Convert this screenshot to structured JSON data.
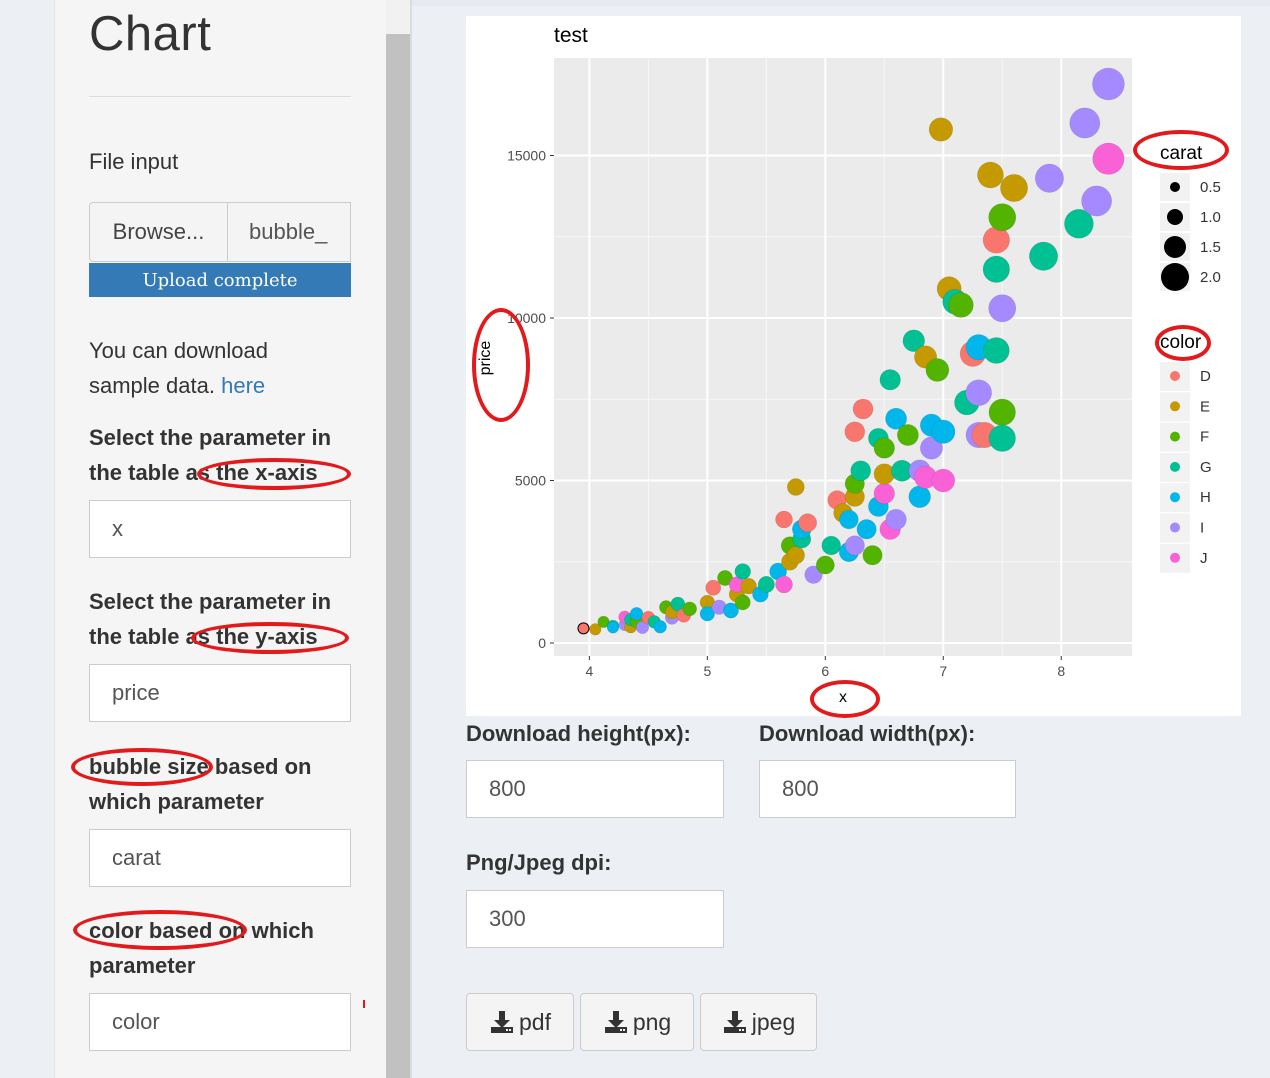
{
  "sidebar": {
    "title": "Chart",
    "file_input": {
      "label": "File input",
      "browse_label": "Browse...",
      "file_name": "bubble_",
      "progress_label": "Upload complete",
      "progress": 1.0
    },
    "download_note": {
      "text": "You can download sample data.",
      "link": "here"
    },
    "x_axis": {
      "label": "Select the parameter in the table as the x-axis",
      "value": "x"
    },
    "y_axis": {
      "label": "Select the parameter in the table as the y-axis",
      "value": "price"
    },
    "size_param": {
      "label": "bubble size based on which parameter",
      "value": "carat"
    },
    "color_param": {
      "label": "color based on which parameter",
      "value": "color"
    }
  },
  "download": {
    "height_label": "Download height(px):",
    "height_value": "800",
    "width_label": "Download width(px):",
    "width_value": "800",
    "dpi_label": "Png/Jpeg dpi:",
    "dpi_value": "300",
    "buttons": [
      {
        "label": "pdf",
        "icon": "download-icon"
      },
      {
        "label": "png",
        "icon": "download-icon"
      },
      {
        "label": "jpeg",
        "icon": "download-icon"
      }
    ]
  },
  "colors": {
    "accent": "#337ab7",
    "annotation": "#e31a1c",
    "panel_bg": "#ebebeb"
  },
  "chart_data": {
    "type": "scatter",
    "title": "test",
    "xlabel": "x",
    "ylabel": "price",
    "xlim": [
      3.7,
      8.6
    ],
    "ylim": [
      -400,
      18000
    ],
    "x_ticks": [
      4,
      5,
      6,
      7,
      8
    ],
    "y_ticks": [
      0,
      5000,
      10000,
      15000
    ],
    "y_tick_labels": [
      "0",
      "5000",
      "10000",
      "15000"
    ],
    "grid": true,
    "legend_position": "right",
    "size_legend": {
      "title": "carat",
      "values": [
        "0.5",
        "1.0",
        "1.5",
        "2.0"
      ]
    },
    "color_legend": {
      "title": "color",
      "entries": [
        {
          "label": "D",
          "color": "#F8766D"
        },
        {
          "label": "E",
          "color": "#C49A00"
        },
        {
          "label": "F",
          "color": "#53B400"
        },
        {
          "label": "G",
          "color": "#00C094"
        },
        {
          "label": "H",
          "color": "#00B6EB"
        },
        {
          "label": "I",
          "color": "#A58AFF"
        },
        {
          "label": "J",
          "color": "#FB61D7"
        }
      ]
    },
    "points": [
      [
        3.95,
        450,
        0.25,
        "D"
      ],
      [
        4.05,
        420,
        0.3,
        "E"
      ],
      [
        4.12,
        650,
        0.3,
        "F"
      ],
      [
        4.2,
        520,
        0.32,
        "G"
      ],
      [
        4.2,
        480,
        0.3,
        "H"
      ],
      [
        4.3,
        560,
        0.33,
        "I"
      ],
      [
        4.3,
        800,
        0.35,
        "J"
      ],
      [
        4.35,
        500,
        0.38,
        "E"
      ],
      [
        4.35,
        720,
        0.38,
        "G"
      ],
      [
        4.4,
        650,
        0.4,
        "F"
      ],
      [
        4.4,
        900,
        0.4,
        "H"
      ],
      [
        4.45,
        480,
        0.38,
        "I"
      ],
      [
        4.5,
        780,
        0.42,
        "D"
      ],
      [
        4.55,
        650,
        0.4,
        "G"
      ],
      [
        4.6,
        500,
        0.4,
        "H"
      ],
      [
        4.65,
        1100,
        0.45,
        "F"
      ],
      [
        4.7,
        780,
        0.45,
        "I"
      ],
      [
        4.7,
        950,
        0.45,
        "E"
      ],
      [
        4.75,
        1200,
        0.5,
        "G"
      ],
      [
        4.8,
        850,
        0.5,
        "D"
      ],
      [
        4.85,
        1050,
        0.5,
        "F"
      ],
      [
        5.0,
        1250,
        0.55,
        "E"
      ],
      [
        5.0,
        900,
        0.55,
        "H"
      ],
      [
        5.05,
        1700,
        0.6,
        "D"
      ],
      [
        5.1,
        1100,
        0.55,
        "I"
      ],
      [
        5.15,
        2000,
        0.6,
        "F"
      ],
      [
        5.2,
        1000,
        0.6,
        "H"
      ],
      [
        5.25,
        1500,
        0.62,
        "E"
      ],
      [
        5.25,
        1800,
        0.62,
        "J"
      ],
      [
        5.3,
        2200,
        0.65,
        "G"
      ],
      [
        5.3,
        1250,
        0.6,
        "F"
      ],
      [
        5.35,
        1750,
        0.65,
        "E"
      ],
      [
        5.45,
        1500,
        0.65,
        "H"
      ],
      [
        5.5,
        1800,
        0.7,
        "G"
      ],
      [
        5.6,
        2200,
        0.75,
        "H"
      ],
      [
        5.65,
        1800,
        0.75,
        "J"
      ],
      [
        5.7,
        2500,
        0.75,
        "E"
      ],
      [
        5.7,
        3000,
        0.8,
        "F"
      ],
      [
        5.75,
        2700,
        0.8,
        "E"
      ],
      [
        5.75,
        4800,
        0.75,
        "E"
      ],
      [
        5.8,
        3200,
        0.85,
        "G"
      ],
      [
        5.8,
        3500,
        0.9,
        "H"
      ],
      [
        5.85,
        3700,
        0.85,
        "D"
      ],
      [
        5.9,
        2100,
        0.8,
        "I"
      ],
      [
        5.65,
        3800,
        0.75,
        "D"
      ],
      [
        6.0,
        2400,
        0.85,
        "F"
      ],
      [
        6.05,
        3000,
        0.9,
        "G"
      ],
      [
        6.1,
        4400,
        0.9,
        "D"
      ],
      [
        6.15,
        4000,
        0.9,
        "E"
      ],
      [
        6.2,
        2800,
        0.95,
        "H"
      ],
      [
        6.2,
        3800,
        0.9,
        "H"
      ],
      [
        6.25,
        3000,
        0.95,
        "I"
      ],
      [
        6.25,
        4500,
        0.95,
        "E"
      ],
      [
        6.25,
        4900,
        0.95,
        "F"
      ],
      [
        6.25,
        6500,
        1.0,
        "D"
      ],
      [
        6.3,
        5300,
        1.0,
        "G"
      ],
      [
        6.32,
        7200,
        1.0,
        "D"
      ],
      [
        6.35,
        3500,
        0.95,
        "H"
      ],
      [
        6.4,
        2700,
        0.95,
        "F"
      ],
      [
        6.45,
        4200,
        1.0,
        "H"
      ],
      [
        6.45,
        6300,
        1.0,
        "G"
      ],
      [
        6.5,
        4600,
        1.05,
        "J"
      ],
      [
        6.5,
        5200,
        1.05,
        "E"
      ],
      [
        6.5,
        6000,
        1.05,
        "F"
      ],
      [
        6.55,
        8100,
        1.05,
        "G"
      ],
      [
        6.55,
        3500,
        1.05,
        "J"
      ],
      [
        6.6,
        3800,
        1.05,
        "I"
      ],
      [
        6.6,
        6900,
        1.1,
        "H"
      ],
      [
        6.65,
        5300,
        1.1,
        "G"
      ],
      [
        6.7,
        6400,
        1.1,
        "F"
      ],
      [
        6.75,
        9300,
        1.15,
        "G"
      ],
      [
        6.8,
        5300,
        1.15,
        "I"
      ],
      [
        6.8,
        4500,
        1.15,
        "H"
      ],
      [
        6.85,
        8800,
        1.2,
        "E"
      ],
      [
        6.85,
        5100,
        1.2,
        "J"
      ],
      [
        6.9,
        6700,
        1.2,
        "H"
      ],
      [
        6.9,
        6000,
        1.2,
        "I"
      ],
      [
        6.95,
        8400,
        1.25,
        "F"
      ],
      [
        7.0,
        5000,
        1.25,
        "J"
      ],
      [
        7.0,
        6500,
        1.3,
        "H"
      ],
      [
        6.98,
        15800,
        1.3,
        "E"
      ],
      [
        7.05,
        10900,
        1.35,
        "E"
      ],
      [
        7.1,
        10500,
        1.4,
        "G"
      ],
      [
        7.15,
        10400,
        1.4,
        "F"
      ],
      [
        7.2,
        7400,
        1.4,
        "G"
      ],
      [
        7.25,
        8900,
        1.45,
        "D"
      ],
      [
        7.3,
        9100,
        1.45,
        "H"
      ],
      [
        7.3,
        6400,
        1.45,
        "I"
      ],
      [
        7.3,
        7700,
        1.5,
        "I"
      ],
      [
        7.35,
        6400,
        1.45,
        "D"
      ],
      [
        7.4,
        14400,
        1.5,
        "E"
      ],
      [
        7.45,
        9000,
        1.5,
        "G"
      ],
      [
        7.45,
        11500,
        1.55,
        "G"
      ],
      [
        7.45,
        12400,
        1.55,
        "D"
      ],
      [
        7.5,
        13100,
        1.6,
        "F"
      ],
      [
        7.5,
        10300,
        1.6,
        "I"
      ],
      [
        7.5,
        7100,
        1.55,
        "F"
      ],
      [
        7.5,
        6300,
        1.55,
        "G"
      ],
      [
        7.6,
        14000,
        1.6,
        "E"
      ],
      [
        7.85,
        11900,
        1.7,
        "G"
      ],
      [
        7.9,
        14300,
        1.7,
        "I"
      ],
      [
        8.15,
        12900,
        1.75,
        "G"
      ],
      [
        8.2,
        16000,
        1.85,
        "I"
      ],
      [
        8.3,
        13600,
        1.85,
        "I"
      ],
      [
        8.4,
        14900,
        1.95,
        "J"
      ],
      [
        8.4,
        17200,
        2.0,
        "I"
      ]
    ]
  }
}
